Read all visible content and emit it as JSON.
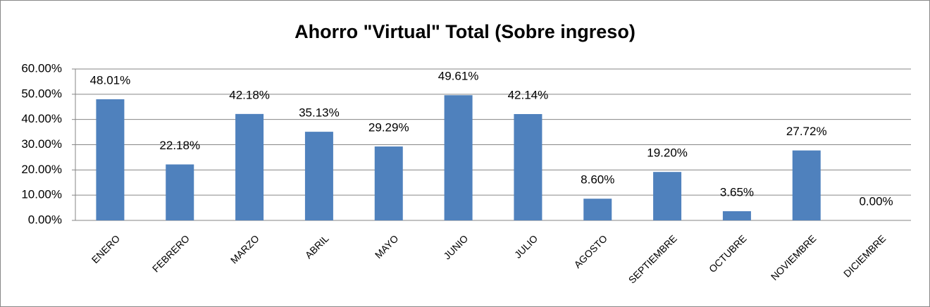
{
  "chart_data": {
    "type": "bar",
    "title": "Ahorro \"Virtual\" Total (Sobre ingreso)",
    "categories": [
      "ENERO",
      "FEBRERO",
      "MARZO",
      "ABRIL",
      "MAYO",
      "JUNIO",
      "JULIO",
      "AGOSTO",
      "SEPTIEMBRE",
      "OCTUBRE",
      "NOVIEMBRE",
      "DICIEMBRE"
    ],
    "values": [
      48.01,
      22.18,
      42.18,
      35.13,
      29.29,
      49.61,
      42.14,
      8.6,
      19.2,
      3.65,
      27.72,
      0.0
    ],
    "value_labels": [
      "48.01%",
      "22.18%",
      "42.18%",
      "35.13%",
      "29.29%",
      "49.61%",
      "42.14%",
      "8.60%",
      "19.20%",
      "3.65%",
      "27.72%",
      "0.00%"
    ],
    "color": "#4f81bd",
    "ylim": [
      0,
      60
    ],
    "yticks": [
      {
        "value": 0,
        "label": "0.00%"
      },
      {
        "value": 10,
        "label": "10.00%"
      },
      {
        "value": 20,
        "label": "20.00%"
      },
      {
        "value": 30,
        "label": "30.00%"
      },
      {
        "value": 40,
        "label": "40.00%"
      },
      {
        "value": 50,
        "label": "50.00%"
      },
      {
        "value": 60,
        "label": "60.00%"
      }
    ],
    "grid": true
  }
}
